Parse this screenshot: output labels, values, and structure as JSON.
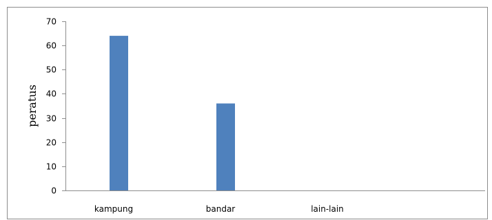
{
  "chart_data": {
    "type": "bar",
    "categories": [
      "kampung",
      "bandar",
      "lain-lain"
    ],
    "values": [
      64,
      36,
      0
    ],
    "title": "",
    "xlabel": "",
    "ylabel": "peratus",
    "ylim": [
      0,
      70
    ],
    "yticks": [
      0,
      10,
      20,
      30,
      40,
      50,
      60,
      70
    ],
    "bar_color": "#4f81bd",
    "grid": false,
    "legend": "none"
  }
}
